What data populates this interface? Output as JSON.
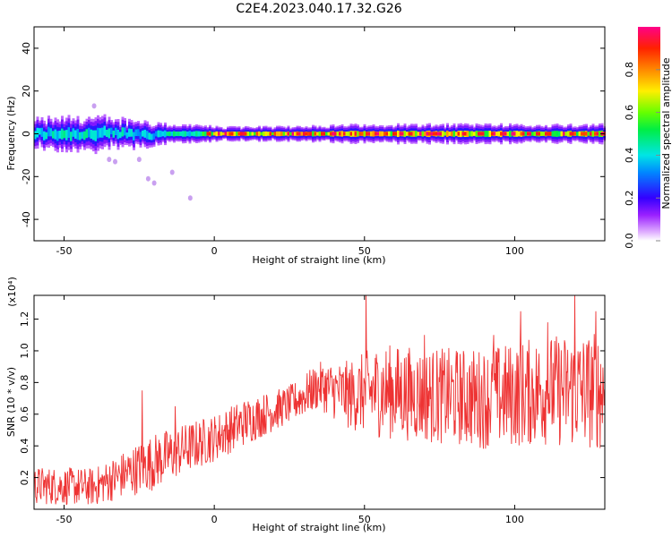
{
  "title": "C2E4.2023.040.17.32.G26",
  "chart_data": [
    {
      "type": "heatmap",
      "xlabel": "Height of straight line (km)",
      "ylabel": "Frequency (Hz)",
      "xlim": [
        -60,
        130
      ],
      "ylim": [
        -50,
        50
      ],
      "x_ticks": [
        -50,
        0,
        50,
        100
      ],
      "y_ticks": [
        -40,
        -20,
        0,
        20,
        40
      ],
      "colorbar": {
        "label": "Normalized spectral amplitude",
        "range": [
          0.0,
          1.0
        ],
        "ticks": [
          "0.0",
          "0.2",
          "0.4",
          "0.6",
          "0.8"
        ]
      },
      "band_center_hz": 0,
      "band_profile": [
        {
          "x": -58,
          "half_width_hz": 6,
          "peak": 0.5
        },
        {
          "x": -50,
          "half_width_hz": 7,
          "peak": 0.55
        },
        {
          "x": -40,
          "half_width_hz": 7,
          "peak": 0.55
        },
        {
          "x": -30,
          "half_width_hz": 6,
          "peak": 0.5
        },
        {
          "x": -25,
          "half_width_hz": 6,
          "peak": 0.45
        },
        {
          "x": -15,
          "half_width_hz": 4,
          "peak": 0.55
        },
        {
          "x": -5,
          "half_width_hz": 4,
          "peak": 0.6
        },
        {
          "x": 0,
          "half_width_hz": 3,
          "peak": 0.85
        },
        {
          "x": 20,
          "half_width_hz": 3,
          "peak": 0.9
        },
        {
          "x": 50,
          "half_width_hz": 4,
          "peak": 0.9
        },
        {
          "x": 80,
          "half_width_hz": 4,
          "peak": 0.9
        },
        {
          "x": 100,
          "half_width_hz": 4,
          "peak": 0.8
        },
        {
          "x": 130,
          "half_width_hz": 4,
          "peak": 0.85
        }
      ],
      "scatter_blobs": [
        {
          "x": -35,
          "y": -12
        },
        {
          "x": -33,
          "y": -13
        },
        {
          "x": -25,
          "y": -12
        },
        {
          "x": -22,
          "y": -21
        },
        {
          "x": -20,
          "y": -23
        },
        {
          "x": -14,
          "y": -18
        },
        {
          "x": -8,
          "y": -30
        },
        {
          "x": -40,
          "y": 13
        }
      ]
    },
    {
      "type": "line",
      "xlabel": "Height of straight line (km)",
      "ylabel": "SNR (10 * v/v)",
      "y_multiplier": "(x10⁴)",
      "xlim": [
        -60,
        130
      ],
      "ylim": [
        0,
        1.35
      ],
      "x_ticks": [
        -50,
        0,
        50,
        100
      ],
      "y_ticks": [
        "0.2",
        "0.4",
        "0.6",
        "0.8",
        "1.0",
        "1.2"
      ],
      "color": "#ee3333",
      "envelope": [
        {
          "x": -60,
          "mean": 0.15,
          "amp": 0.12
        },
        {
          "x": -40,
          "mean": 0.14,
          "amp": 0.12
        },
        {
          "x": -30,
          "mean": 0.22,
          "amp": 0.15
        },
        {
          "x": -20,
          "mean": 0.3,
          "amp": 0.18
        },
        {
          "x": -10,
          "mean": 0.38,
          "amp": 0.16
        },
        {
          "x": 0,
          "mean": 0.45,
          "amp": 0.15
        },
        {
          "x": 10,
          "mean": 0.55,
          "amp": 0.15
        },
        {
          "x": 25,
          "mean": 0.66,
          "amp": 0.12
        },
        {
          "x": 35,
          "mean": 0.78,
          "amp": 0.15
        },
        {
          "x": 45,
          "mean": 0.72,
          "amp": 0.22
        },
        {
          "x": 55,
          "mean": 0.75,
          "amp": 0.3
        },
        {
          "x": 70,
          "mean": 0.72,
          "amp": 0.3
        },
        {
          "x": 90,
          "mean": 0.7,
          "amp": 0.32
        },
        {
          "x": 110,
          "mean": 0.75,
          "amp": 0.35
        },
        {
          "x": 130,
          "mean": 0.75,
          "amp": 0.38
        }
      ],
      "peaks": [
        {
          "x": -24,
          "y": 0.75
        },
        {
          "x": -13,
          "y": 0.65
        },
        {
          "x": 50.5,
          "y": 1.35
        },
        {
          "x": 70,
          "y": 1.1
        },
        {
          "x": 93,
          "y": 1.1
        },
        {
          "x": 102,
          "y": 1.25
        },
        {
          "x": 111,
          "y": 1.18
        },
        {
          "x": 120,
          "y": 1.35
        },
        {
          "x": 127,
          "y": 1.25
        }
      ]
    }
  ]
}
